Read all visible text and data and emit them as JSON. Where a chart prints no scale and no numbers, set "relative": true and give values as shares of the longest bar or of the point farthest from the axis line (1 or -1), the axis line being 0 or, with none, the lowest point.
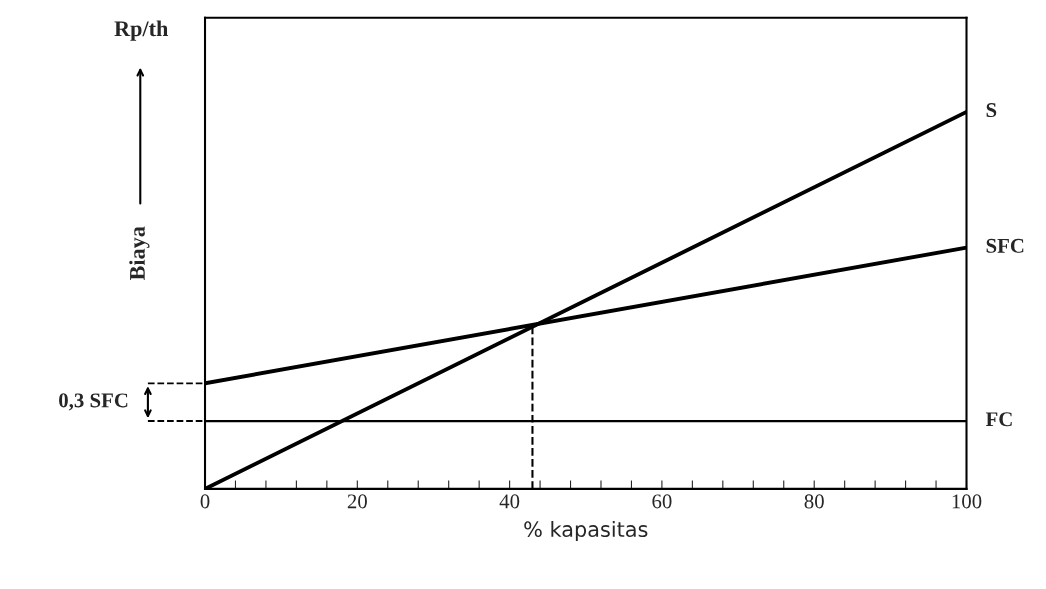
{
  "chart_data": {
    "type": "line",
    "relative": true,
    "xlabel": "% kapasitas",
    "ylabel": "Biaya",
    "title": "Rp/th",
    "xlim": [
      0,
      100
    ],
    "xticks": [
      0,
      {
        "value": 4,
        "label": null
      },
      {
        "value": 8,
        "label": null
      },
      {
        "value": 12,
        "label": null
      },
      {
        "value": 16,
        "label": null
      },
      20,
      {
        "value": 24,
        "label": null
      },
      {
        "value": 28,
        "label": null
      },
      {
        "value": 32,
        "label": null
      },
      {
        "value": 36,
        "label": null
      },
      40,
      {
        "value": 44,
        "label": null
      },
      {
        "value": 48,
        "label": null
      },
      {
        "value": 52,
        "label": null
      },
      {
        "value": 56,
        "label": null
      },
      60,
      {
        "value": 64,
        "label": null
      },
      {
        "value": 68,
        "label": null
      },
      {
        "value": 72,
        "label": null
      },
      {
        "value": 76,
        "label": null
      },
      80,
      {
        "value": 84,
        "label": null
      },
      {
        "value": 88,
        "label": null
      },
      {
        "value": 92,
        "label": null
      },
      {
        "value": 96,
        "label": null
      },
      100
    ],
    "tick_labels": "x",
    "grid": false,
    "legend": false,
    "marker": "none",
    "series": [
      {
        "name": "S",
        "color": "#000000",
        "x": [
          0,
          100
        ],
        "values": [
          0,
          1
        ]
      },
      {
        "name": "SFC",
        "color": "#000000",
        "x": [
          0,
          100
        ],
        "values": [
          0.28,
          0.64
        ]
      },
      {
        "name": "FC",
        "color": "#000000",
        "x": [
          0,
          100
        ],
        "values": [
          0.18,
          0.18
        ]
      },
      {
        "color": "#000000",
        "x": [
          43,
          43
        ],
        "values": [
          0,
          0.43
        ],
        "line_style": "dashed"
      }
    ],
    "annotations": [
      "0,3 SFC"
    ]
  }
}
